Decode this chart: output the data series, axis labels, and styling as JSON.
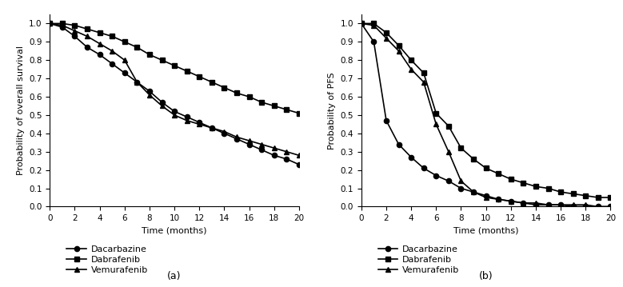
{
  "os_time": [
    0,
    1,
    2,
    3,
    4,
    5,
    6,
    7,
    8,
    9,
    10,
    11,
    12,
    13,
    14,
    15,
    16,
    17,
    18,
    19,
    20
  ],
  "os_dacarbazine": [
    1.0,
    0.98,
    0.93,
    0.87,
    0.83,
    0.78,
    0.73,
    0.68,
    0.63,
    0.57,
    0.52,
    0.49,
    0.46,
    0.43,
    0.4,
    0.37,
    0.34,
    0.31,
    0.28,
    0.26,
    0.23
  ],
  "os_dabrafenib": [
    1.0,
    1.0,
    0.99,
    0.97,
    0.95,
    0.93,
    0.9,
    0.87,
    0.83,
    0.8,
    0.77,
    0.74,
    0.71,
    0.68,
    0.65,
    0.62,
    0.6,
    0.57,
    0.55,
    0.53,
    0.51
  ],
  "os_vemurafenib": [
    1.0,
    0.99,
    0.96,
    0.93,
    0.89,
    0.85,
    0.8,
    0.68,
    0.61,
    0.55,
    0.5,
    0.47,
    0.45,
    0.43,
    0.41,
    0.38,
    0.36,
    0.34,
    0.32,
    0.3,
    0.28
  ],
  "pfs_time": [
    0,
    1,
    2,
    3,
    4,
    5,
    6,
    7,
    8,
    9,
    10,
    11,
    12,
    13,
    14,
    15,
    16,
    17,
    18,
    19,
    20
  ],
  "pfs_dacarbazine": [
    1.0,
    0.9,
    0.47,
    0.34,
    0.27,
    0.21,
    0.17,
    0.14,
    0.1,
    0.08,
    0.06,
    0.04,
    0.03,
    0.02,
    0.01,
    0.01,
    0.01,
    0.0,
    0.0,
    0.0,
    0.0
  ],
  "pfs_dabrafenib": [
    1.0,
    1.0,
    0.95,
    0.88,
    0.8,
    0.73,
    0.51,
    0.44,
    0.32,
    0.26,
    0.21,
    0.18,
    0.15,
    0.13,
    0.11,
    0.1,
    0.08,
    0.07,
    0.06,
    0.05,
    0.05
  ],
  "pfs_vemurafenib": [
    1.0,
    0.99,
    0.92,
    0.85,
    0.75,
    0.68,
    0.45,
    0.3,
    0.14,
    0.08,
    0.05,
    0.04,
    0.03,
    0.02,
    0.02,
    0.01,
    0.01,
    0.01,
    0.01,
    0.0,
    0.0
  ],
  "color": "#000000",
  "ylabel_left": "Probability of overall survival",
  "ylabel_right": "Probability of PFS",
  "xlabel": "Time (months)",
  "label_a": "(a)",
  "label_b": "(b)",
  "legend_labels": [
    "Dacarbazine",
    "Dabrafenib",
    "Vemurafenib"
  ],
  "yticks": [
    0.0,
    0.1,
    0.2,
    0.3,
    0.4,
    0.5,
    0.6,
    0.7,
    0.8,
    0.9,
    1.0
  ],
  "xticks": [
    0,
    2,
    4,
    6,
    8,
    10,
    12,
    14,
    16,
    18,
    20
  ],
  "xlim": [
    0,
    20
  ],
  "ylim": [
    0.0,
    1.05
  ]
}
